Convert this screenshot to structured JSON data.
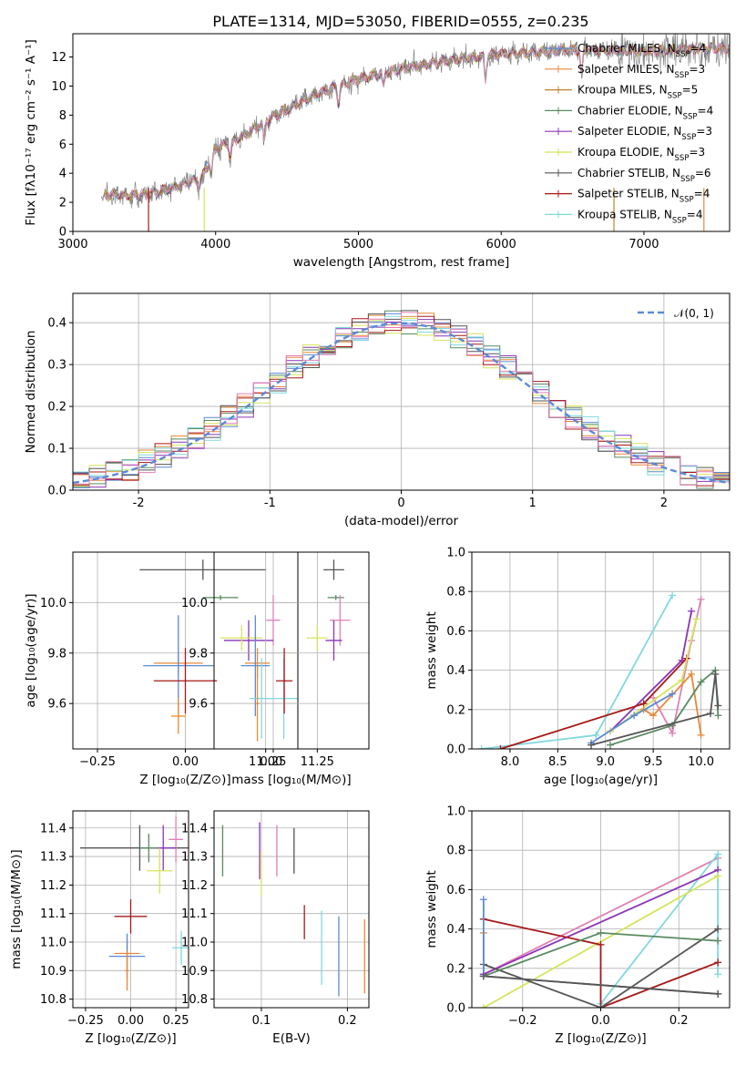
{
  "title": "PLATE=1314, MJD=53050, FIBERID=0555, z=0.235",
  "colors": {
    "Chabrier MILES": "#5b8ad6",
    "Salpeter MILES": "#e8893a",
    "Kroupa MILES": "#b8862b",
    "Chabrier ELODIE": "#5a8a62",
    "Salpeter ELODIE": "#8c35b8",
    "Kroupa ELODIE": "#d6e45a",
    "Chabrier STELIB": "#555555",
    "Salpeter STELIB": "#a81818",
    "Kroupa STELIB": "#7fd8de",
    "extra1": "#e07fb4",
    "extra2": "#f08a2a"
  },
  "legend": [
    {
      "key": "Chabrier MILES",
      "label": "Chabrier MILES, N",
      "nssp": "=4"
    },
    {
      "key": "Salpeter MILES",
      "label": "Salpeter MILES, N",
      "nssp": "=3"
    },
    {
      "key": "Kroupa MILES",
      "label": "Kroupa MILES, N",
      "nssp": "=5"
    },
    {
      "key": "Chabrier ELODIE",
      "label": "Chabrier ELODIE, N",
      "nssp": "=4"
    },
    {
      "key": "Salpeter ELODIE",
      "label": "Salpeter ELODIE, N",
      "nssp": "=3"
    },
    {
      "key": "Kroupa ELODIE",
      "label": "Kroupa ELODIE, N",
      "nssp": "=3"
    },
    {
      "key": "Chabrier STELIB",
      "label": "Chabrier STELIB, N",
      "nssp": "=6"
    },
    {
      "key": "Salpeter STELIB",
      "label": "Salpeter STELIB, N",
      "nssp": "=4"
    },
    {
      "key": "Kroupa STELIB",
      "label": "Kroupa STELIB, N",
      "nssp": "=4"
    }
  ],
  "chart_data": [
    {
      "id": "spectrum",
      "type": "line",
      "xlabel": "wavelength [Angstrom, rest frame]",
      "ylabel": "Flux [fλ10⁻¹⁷ erg cm⁻² s⁻¹ A⁻¹]",
      "xlim": [
        3000,
        7600
      ],
      "ylim": [
        0,
        13.6
      ],
      "xticks": [
        3000,
        4000,
        5000,
        6000,
        7000
      ],
      "yticks": [
        0,
        2,
        4,
        6,
        8,
        10,
        12
      ],
      "continuum_knots": [
        [
          3200,
          2.5
        ],
        [
          3500,
          2.5
        ],
        [
          3700,
          3.0
        ],
        [
          3900,
          3.7
        ],
        [
          4000,
          5.7
        ],
        [
          4200,
          6.6
        ],
        [
          4400,
          7.9
        ],
        [
          4700,
          9.4
        ],
        [
          5000,
          10.5
        ],
        [
          5300,
          11.2
        ],
        [
          5600,
          11.7
        ],
        [
          6000,
          12.2
        ],
        [
          6500,
          12.5
        ],
        [
          7000,
          12.4
        ],
        [
          7400,
          12.6
        ]
      ],
      "model_start": 3200,
      "data_range": [
        3200,
        7600
      ]
    },
    {
      "id": "residual-histogram",
      "type": "area",
      "xlabel": "(data-model)/error",
      "ylabel": "Normed distribution",
      "xlim": [
        -2.5,
        2.5
      ],
      "ylim": [
        0,
        0.47
      ],
      "xticks": [
        -2,
        -1,
        0,
        1,
        2
      ],
      "yticks": [
        0,
        0.1,
        0.2,
        0.3,
        0.4
      ],
      "legend_label": "𝒩(0, 1)",
      "bins": 40,
      "reference": "normal(0,1) density"
    },
    {
      "id": "age-vs-Z",
      "type": "scatter",
      "xlabel": "Z [log₁₀(Z/Z⊙)]",
      "ylabel": "age  [log₁₀(age/yr)]",
      "xlim": [
        -0.32,
        0.32
      ],
      "ylim": [
        9.42,
        10.2
      ],
      "xticks": [
        -0.25,
        0,
        0.25
      ],
      "xticklabels": [
        "−0.25",
        "0.00",
        "0.25"
      ],
      "yticks": [
        9.6,
        9.8,
        10.0
      ],
      "points": [
        {
          "c": "Chabrier STELIB",
          "x": 0.05,
          "xe": 0.18,
          "y": 10.13,
          "ye": 0.04
        },
        {
          "c": "Chabrier ELODIE",
          "x": 0.1,
          "xe": 0.05,
          "y": 10.02,
          "ye": 0.01
        },
        {
          "c": "extra1",
          "x": 0.25,
          "xe": 0.02,
          "y": 9.93,
          "ye": 0.1
        },
        {
          "c": "Salpeter ELODIE",
          "x": 0.18,
          "xe": 0.07,
          "y": 9.85,
          "ye": 0.08
        },
        {
          "c": "Kroupa ELODIE",
          "x": 0.16,
          "xe": 0.06,
          "y": 9.86,
          "ye": 0.05
        },
        {
          "c": "Salpeter MILES",
          "x": -0.02,
          "xe": 0.07,
          "y": 9.76,
          "ye": 0.04
        },
        {
          "c": "Chabrier MILES",
          "x": -0.02,
          "xe": 0.1,
          "y": 9.75,
          "ye": 0.2
        },
        {
          "c": "Salpeter STELIB",
          "x": 0.0,
          "xe": 0.09,
          "y": 9.69,
          "ye": 0.13
        },
        {
          "c": "Kroupa STELIB",
          "x": 0.28,
          "xe": 0.05,
          "y": 9.62,
          "ye": 0.16
        },
        {
          "c": "extra2",
          "x": -0.02,
          "xe": 0.02,
          "y": 9.55,
          "ye": 0.07
        }
      ]
    },
    {
      "id": "age-vs-mass",
      "type": "scatter",
      "xlabel": "mass [log₁₀(M/M⊙)]",
      "ylabel": "",
      "xlim": [
        10.75,
        11.5
      ],
      "ylim": [
        9.42,
        10.2
      ],
      "xticks": [
        11.0,
        11.25
      ],
      "xticklabels": [
        "11.00",
        "11.25"
      ],
      "yticks": [
        9.6,
        9.8,
        10.0
      ],
      "points": [
        {
          "c": "Chabrier STELIB",
          "x": 11.33,
          "xe": 0.05,
          "y": 10.13,
          "ye": 0.04
        },
        {
          "c": "Chabrier ELODIE",
          "x": 11.34,
          "xe": 0.04,
          "y": 10.02,
          "ye": 0.01
        },
        {
          "c": "extra1",
          "x": 11.36,
          "xe": 0.05,
          "y": 9.93,
          "ye": 0.1
        },
        {
          "c": "Salpeter ELODIE",
          "x": 11.33,
          "xe": 0.04,
          "y": 9.85,
          "ye": 0.08
        },
        {
          "c": "Kroupa ELODIE",
          "x": 11.25,
          "xe": 0.05,
          "y": 9.86,
          "ye": 0.05
        },
        {
          "c": "Salpeter MILES",
          "x": 10.96,
          "xe": 0.06,
          "y": 9.76,
          "ye": 0.06
        },
        {
          "c": "Chabrier MILES",
          "x": 10.95,
          "xe": 0.07,
          "y": 9.75,
          "ye": 0.2
        },
        {
          "c": "Salpeter STELIB",
          "x": 11.09,
          "xe": 0.04,
          "y": 9.69,
          "ye": 0.13
        },
        {
          "c": "Kroupa STELIB",
          "x": 10.98,
          "xe": 0.06,
          "y": 9.62,
          "ye": 0.16
        },
        {
          "c": "extra2",
          "x": 10.96,
          "xe": 0.01,
          "y": 9.6,
          "ye": 0.15
        }
      ]
    },
    {
      "id": "weight-vs-age",
      "type": "line",
      "xlabel": "age  [log₁₀(age/yr)]",
      "ylabel": "mass weight",
      "xlim": [
        7.6,
        10.3
      ],
      "ylim": [
        0,
        1.0
      ],
      "xticks": [
        8.0,
        8.5,
        9.0,
        9.5,
        10.0
      ],
      "xticklabels": [
        "8.0",
        "8.5",
        "9.0",
        "9.5",
        "10.0"
      ],
      "yticks": [
        0,
        0.2,
        0.4,
        0.6,
        0.8,
        1.0
      ],
      "series": [
        {
          "c": "Kroupa STELIB",
          "pts": [
            [
              7.7,
              0.0
            ],
            [
              8.9,
              0.07
            ],
            [
              9.7,
              0.78
            ]
          ]
        },
        {
          "c": "Salpeter ELODIE",
          "pts": [
            [
              9.05,
              0.09
            ],
            [
              9.8,
              0.45
            ],
            [
              9.9,
              0.7
            ]
          ]
        },
        {
          "c": "extra1",
          "pts": [
            [
              9.5,
              0.26
            ],
            [
              9.7,
              0.08
            ],
            [
              9.9,
              0.55
            ],
            [
              10.0,
              0.76
            ]
          ]
        },
        {
          "c": "Salpeter STELIB",
          "pts": [
            [
              7.9,
              0.0
            ],
            [
              9.4,
              0.23
            ],
            [
              9.85,
              0.46
            ]
          ]
        },
        {
          "c": "Kroupa ELODIE",
          "pts": [
            [
              9.05,
              0.09
            ],
            [
              9.8,
              0.35
            ],
            [
              9.95,
              0.66
            ]
          ]
        },
        {
          "c": "Salpeter MILES",
          "pts": [
            [
              9.4,
              0.2
            ],
            [
              9.5,
              0.17
            ],
            [
              9.9,
              0.38
            ],
            [
              10.0,
              0.07
            ]
          ]
        },
        {
          "c": "Chabrier MILES",
          "pts": [
            [
              8.85,
              0.03
            ],
            [
              9.3,
              0.17
            ],
            [
              9.7,
              0.28
            ]
          ]
        },
        {
          "c": "Chabrier ELODIE",
          "pts": [
            [
              9.05,
              0.02
            ],
            [
              9.7,
              0.12
            ],
            [
              10.0,
              0.34
            ],
            [
              10.15,
              0.4
            ],
            [
              10.18,
              0.17
            ]
          ]
        },
        {
          "c": "Chabrier STELIB",
          "pts": [
            [
              8.85,
              0.02
            ],
            [
              10.1,
              0.18
            ],
            [
              10.15,
              0.38
            ],
            [
              10.18,
              0.22
            ]
          ]
        }
      ]
    },
    {
      "id": "mass-vs-Z",
      "type": "scatter",
      "xlabel": "Z [log₁₀(Z/Z⊙)]",
      "ylabel": "mass [log₁₀(M/M⊙)]",
      "xlim": [
        -0.32,
        0.32
      ],
      "ylim": [
        10.77,
        11.46
      ],
      "xticks": [
        -0.25,
        0,
        0.25
      ],
      "xticklabels": [
        "−0.25",
        "0.00",
        "0.25"
      ],
      "yticks": [
        10.8,
        10.9,
        11.0,
        11.1,
        11.2,
        11.3,
        11.4
      ],
      "points": [
        {
          "c": "Chabrier STELIB",
          "x": 0.05,
          "xe": 0.33,
          "y": 11.33,
          "ye": 0.08
        },
        {
          "c": "extra1",
          "x": 0.25,
          "xe": 0.04,
          "y": 11.36,
          "ye": 0.08
        },
        {
          "c": "Salpeter ELODIE",
          "x": 0.18,
          "xe": 0.07,
          "y": 11.33,
          "ye": 0.08
        },
        {
          "c": "Chabrier ELODIE",
          "x": 0.1,
          "xe": 0.05,
          "y": 11.33,
          "ye": 0.05
        },
        {
          "c": "Kroupa ELODIE",
          "x": 0.16,
          "xe": 0.07,
          "y": 11.25,
          "ye": 0.08
        },
        {
          "c": "Salpeter STELIB",
          "x": 0.0,
          "xe": 0.09,
          "y": 11.09,
          "ye": 0.06
        },
        {
          "c": "Kroupa STELIB",
          "x": 0.28,
          "xe": 0.05,
          "y": 10.98,
          "ye": 0.06
        },
        {
          "c": "Salpeter MILES",
          "x": -0.02,
          "xe": 0.07,
          "y": 10.96,
          "ye": 0.05
        },
        {
          "c": "Chabrier MILES",
          "x": -0.02,
          "xe": 0.1,
          "y": 10.95,
          "ye": 0.08
        },
        {
          "c": "extra2",
          "x": -0.02,
          "xe": 0.01,
          "y": 10.9,
          "ye": 0.07
        }
      ]
    },
    {
      "id": "mass-vs-ebv",
      "type": "scatter",
      "xlabel": "E(B-V)",
      "ylabel": "",
      "xlim": [
        0.045,
        0.225
      ],
      "ylim": [
        10.77,
        11.46
      ],
      "xticks": [
        0.1,
        0.2
      ],
      "xticklabels": [
        "0.1",
        "0.2"
      ],
      "yticks": [
        10.8,
        10.9,
        11.0,
        11.1,
        11.2,
        11.3,
        11.4
      ],
      "points": [
        {
          "c": "Chabrier ELODIE",
          "x": 0.055,
          "xe": 0,
          "y": 11.32,
          "ye": 0.09
        },
        {
          "c": "Salpeter ELODIE",
          "x": 0.098,
          "xe": 0,
          "y": 11.32,
          "ye": 0.1
        },
        {
          "c": "Kroupa ELODIE",
          "x": 0.1,
          "xe": 0,
          "y": 11.24,
          "ye": 0.08
        },
        {
          "c": "extra1",
          "x": 0.118,
          "xe": 0,
          "y": 11.32,
          "ye": 0.09
        },
        {
          "c": "Chabrier STELIB",
          "x": 0.138,
          "xe": 0,
          "y": 11.32,
          "ye": 0.08
        },
        {
          "c": "Salpeter STELIB",
          "x": 0.15,
          "xe": 0,
          "y": 11.07,
          "ye": 0.06
        },
        {
          "c": "Kroupa STELIB",
          "x": 0.17,
          "xe": 0,
          "y": 10.98,
          "ye": 0.13
        },
        {
          "c": "Chabrier MILES",
          "x": 0.19,
          "xe": 0,
          "y": 10.95,
          "ye": 0.14
        },
        {
          "c": "extra2",
          "x": 0.22,
          "xe": 0,
          "y": 10.95,
          "ye": 0.13
        }
      ]
    },
    {
      "id": "weight-vs-Z",
      "type": "line",
      "xlabel": "Z [log₁₀(Z/Z⊙)]",
      "ylabel": "mass weight",
      "xlim": [
        -0.33,
        0.33
      ],
      "ylim": [
        0,
        1.0
      ],
      "xticks": [
        -0.2,
        0.0,
        0.2
      ],
      "xticklabels": [
        "−0.2",
        "0.0",
        "0.2"
      ],
      "yticks": [
        0,
        0.2,
        0.4,
        0.6,
        0.8,
        1.0
      ],
      "series": [
        {
          "c": "extra1",
          "pts": [
            [
              -0.3,
              0.17
            ],
            [
              0.3,
              0.76
            ]
          ]
        },
        {
          "c": "Kroupa STELIB",
          "pts": [
            [
              0.0,
              0.02
            ],
            [
              0.3,
              0.78
            ],
            [
              0.3,
              0.17
            ]
          ]
        },
        {
          "c": "Salpeter ELODIE",
          "pts": [
            [
              -0.3,
              0.17
            ],
            [
              0.3,
              0.7
            ]
          ]
        },
        {
          "c": "Kroupa ELODIE",
          "pts": [
            [
              -0.3,
              0.0
            ],
            [
              0.3,
              0.67
            ]
          ]
        },
        {
          "c": "Salpeter STELIB",
          "pts": [
            [
              -0.3,
              0.45
            ],
            [
              0.0,
              0.32
            ],
            [
              0.0,
              0.0
            ],
            [
              0.3,
              0.23
            ]
          ]
        },
        {
          "c": "Chabrier STELIB",
          "pts": [
            [
              -0.3,
              0.22
            ],
            [
              0.0,
              0.0
            ],
            [
              0.3,
              0.4
            ]
          ]
        },
        {
          "c": "Chabrier ELODIE",
          "pts": [
            [
              -0.3,
              0.16
            ],
            [
              0.0,
              0.38
            ],
            [
              0.3,
              0.34
            ]
          ]
        },
        {
          "c": "Salpeter MILES",
          "pts": [
            [
              -0.3,
              0.38
            ],
            [
              -0.3,
              0.16
            ],
            [
              0.3,
              0.07
            ]
          ]
        },
        {
          "c": "Chabrier MILES",
          "pts": [
            [
              -0.3,
              0.55
            ],
            [
              -0.3,
              0.16
            ],
            [
              0.3,
              0.07
            ]
          ]
        },
        {
          "c": "Chabrier STELIB",
          "pts": [
            [
              -0.3,
              0.16
            ],
            [
              0.3,
              0.07
            ]
          ]
        }
      ]
    }
  ]
}
